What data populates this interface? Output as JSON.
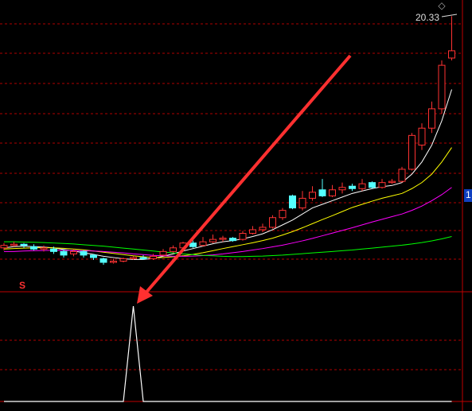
{
  "chart_data": [
    {
      "type": "candlestick",
      "ylim": [
        9,
        21
      ],
      "high_label": "20.33",
      "price_label": "1",
      "signal_marker": "S",
      "up_color": "#ff3232",
      "down_color": "#54ffff",
      "open": [
        10.75,
        10.85,
        10.9,
        10.8,
        10.7,
        10.7,
        10.6,
        10.5,
        10.6,
        10.45,
        10.3,
        10.15,
        10.2,
        10.3,
        10.35,
        10.3,
        10.45,
        10.6,
        10.75,
        10.95,
        10.85,
        11.0,
        11.1,
        11.15,
        11.1,
        11.35,
        11.5,
        11.6,
        12.0,
        12.9,
        12.4,
        12.8,
        13.15,
        12.9,
        13.15,
        13.3,
        13.2,
        13.45,
        13.25,
        13.45,
        13.5,
        14.0,
        15.0,
        15.7,
        16.5,
        18.6
      ],
      "close": [
        10.85,
        10.9,
        10.85,
        10.7,
        10.75,
        10.6,
        10.45,
        10.6,
        10.45,
        10.35,
        10.15,
        10.2,
        10.3,
        10.35,
        10.3,
        10.4,
        10.6,
        10.75,
        10.95,
        10.8,
        11.0,
        11.1,
        11.15,
        11.05,
        11.35,
        11.5,
        11.6,
        12.0,
        12.3,
        12.4,
        12.8,
        13.05,
        12.9,
        13.15,
        13.25,
        13.2,
        13.4,
        13.25,
        13.45,
        13.5,
        14.0,
        15.4,
        15.7,
        16.5,
        18.3,
        18.9
      ],
      "high": [
        10.95,
        11.0,
        10.95,
        10.9,
        10.85,
        10.8,
        10.7,
        10.7,
        10.65,
        10.5,
        10.35,
        10.3,
        10.35,
        10.4,
        10.45,
        10.5,
        10.7,
        10.85,
        11.0,
        11.05,
        11.2,
        11.3,
        11.25,
        11.2,
        11.45,
        11.65,
        11.75,
        12.1,
        12.4,
        12.95,
        13.1,
        13.3,
        13.6,
        13.35,
        13.45,
        13.4,
        13.6,
        13.5,
        13.6,
        13.6,
        14.1,
        15.5,
        15.9,
        16.8,
        18.5,
        20.33
      ],
      "low": [
        10.65,
        10.8,
        10.75,
        10.65,
        10.6,
        10.5,
        10.35,
        10.4,
        10.35,
        10.25,
        10.05,
        10.1,
        10.15,
        10.25,
        10.25,
        10.25,
        10.4,
        10.55,
        10.7,
        10.75,
        10.8,
        10.95,
        11.0,
        11.0,
        11.05,
        11.3,
        11.4,
        11.55,
        11.9,
        12.35,
        12.3,
        12.7,
        12.85,
        12.85,
        13.0,
        13.1,
        13.1,
        13.2,
        13.2,
        13.4,
        13.45,
        13.95,
        14.8,
        15.5,
        16.3,
        18.5
      ],
      "series": [
        {
          "color": "#ffffff",
          "values": [
            10.75,
            10.8,
            10.82,
            10.8,
            10.78,
            10.75,
            10.68,
            10.62,
            10.55,
            10.48,
            10.4,
            10.35,
            10.3,
            10.27,
            10.27,
            10.32,
            10.4,
            10.5,
            10.62,
            10.72,
            10.82,
            10.92,
            11.0,
            11.05,
            11.12,
            11.22,
            11.33,
            11.5,
            11.7,
            11.9,
            12.15,
            12.4,
            12.55,
            12.7,
            12.85,
            13.0,
            13.1,
            13.2,
            13.28,
            13.33,
            13.45,
            13.8,
            14.3,
            15.0,
            16.0,
            17.3
          ]
        },
        {
          "color": "#ffff00",
          "values": [
            10.7,
            10.72,
            10.74,
            10.75,
            10.76,
            10.75,
            10.73,
            10.7,
            10.67,
            10.62,
            10.57,
            10.52,
            10.47,
            10.42,
            10.38,
            10.35,
            10.35,
            10.38,
            10.42,
            10.48,
            10.55,
            10.63,
            10.72,
            10.8,
            10.88,
            10.96,
            11.05,
            11.15,
            11.28,
            11.42,
            11.58,
            11.75,
            11.92,
            12.08,
            12.25,
            12.42,
            12.55,
            12.68,
            12.8,
            12.9,
            13.0,
            13.2,
            13.45,
            13.8,
            14.3,
            14.9
          ]
        },
        {
          "color": "#ff00ff",
          "values": [
            10.6,
            10.6,
            10.62,
            10.63,
            10.64,
            10.65,
            10.65,
            10.64,
            10.63,
            10.62,
            10.6,
            10.57,
            10.54,
            10.5,
            10.47,
            10.44,
            10.42,
            10.4,
            10.4,
            10.41,
            10.43,
            10.46,
            10.5,
            10.55,
            10.6,
            10.66,
            10.72,
            10.79,
            10.86,
            10.95,
            11.04,
            11.14,
            11.25,
            11.36,
            11.47,
            11.58,
            11.7,
            11.82,
            11.93,
            12.04,
            12.15,
            12.3,
            12.48,
            12.7,
            12.95,
            13.25
          ]
        },
        {
          "color": "#00ff00",
          "values": [
            11.0,
            11.0,
            10.99,
            10.98,
            10.97,
            10.95,
            10.93,
            10.91,
            10.88,
            10.85,
            10.82,
            10.78,
            10.74,
            10.7,
            10.66,
            10.62,
            10.58,
            10.54,
            10.5,
            10.47,
            10.44,
            10.42,
            10.4,
            10.39,
            10.39,
            10.4,
            10.41,
            10.43,
            10.45,
            10.48,
            10.51,
            10.54,
            10.57,
            10.6,
            10.63,
            10.66,
            10.7,
            10.74,
            10.78,
            10.82,
            10.86,
            10.91,
            10.97,
            11.04,
            11.12,
            11.22
          ]
        }
      ]
    },
    {
      "type": "signal",
      "ylim": [
        0,
        1
      ],
      "color": "#ffffff",
      "values": [
        0,
        0,
        0,
        0,
        0,
        0,
        0,
        0,
        0,
        0,
        0,
        0,
        0,
        1,
        0,
        0,
        0,
        0,
        0,
        0,
        0,
        0,
        0,
        0,
        0,
        0,
        0,
        0,
        0,
        0,
        0,
        0,
        0,
        0,
        0,
        0,
        0,
        0,
        0,
        0,
        0,
        0,
        0,
        0,
        0,
        0
      ]
    }
  ]
}
